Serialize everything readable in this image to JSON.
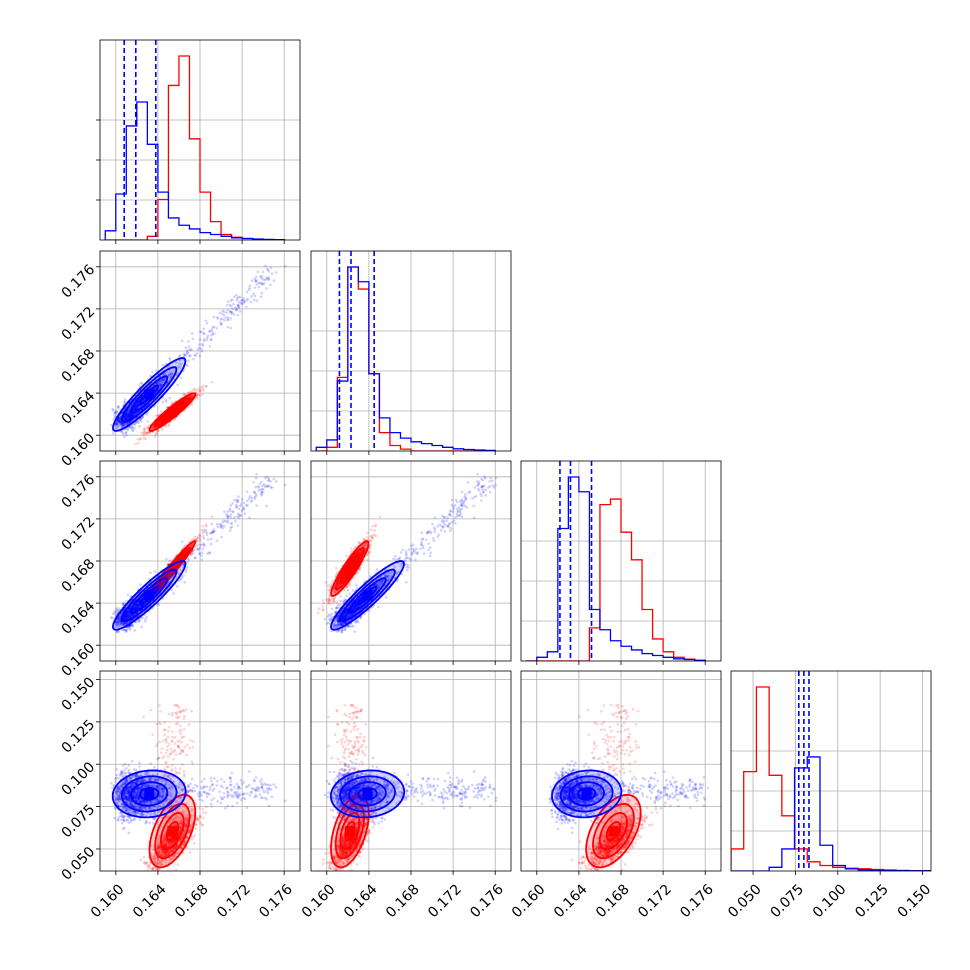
{
  "chart_data": {
    "type": "scatter",
    "title": "",
    "colors": {
      "series_a": "#0000ff",
      "series_b": "#ff0000"
    },
    "grid": true,
    "legend": "none",
    "axes": [
      {
        "range": [
          0.1585,
          0.1775
        ],
        "ticks": [
          "0.160",
          "0.164",
          "0.168",
          "0.172",
          "0.176"
        ],
        "tick_values": [
          0.16,
          0.164,
          0.168,
          0.172,
          0.176
        ]
      },
      {
        "range": [
          0.1585,
          0.1775
        ],
        "ticks": [
          "0.160",
          "0.164",
          "0.168",
          "0.172",
          "0.176"
        ],
        "tick_values": [
          0.16,
          0.164,
          0.168,
          0.172,
          0.176
        ]
      },
      {
        "range": [
          0.1585,
          0.1775
        ],
        "ticks": [
          "0.160",
          "0.164",
          "0.168",
          "0.172",
          "0.176"
        ],
        "tick_values": [
          0.16,
          0.164,
          0.168,
          0.172,
          0.176
        ]
      },
      {
        "range": [
          0.037,
          0.155
        ],
        "ticks": [
          "0.050",
          "0.075",
          "0.100",
          "0.125",
          "0.150"
        ],
        "tick_values": [
          0.05,
          0.075,
          0.1,
          0.125,
          0.15
        ]
      }
    ],
    "series": [
      {
        "key": "series_a",
        "means": [
          0.1615,
          0.1625,
          0.163,
          0.082
        ],
        "sds": [
          0.0012,
          0.0013,
          0.0012,
          0.008
        ],
        "quantiles": [
          [
            0.1608,
            0.1619,
            0.1638
          ],
          [
            0.1612,
            0.1623,
            0.1645
          ],
          [
            0.1622,
            0.1632,
            0.1652
          ],
          [
            0.077,
            0.08,
            0.083
          ]
        ]
      },
      {
        "key": "series_b",
        "means": [
          0.1654,
          0.1622,
          0.1673,
          0.054
        ],
        "sds": [
          0.0011,
          0.0008,
          0.0012,
          0.008
        ]
      }
    ],
    "histograms": [
      {
        "panel": 0,
        "bins": [
          0.159,
          0.16,
          0.161,
          0.162,
          0.163,
          0.164,
          0.165,
          0.166,
          0.167,
          0.168,
          0.169,
          0.17,
          0.171,
          0.172,
          0.173,
          0.174,
          0.175,
          0.176
        ],
        "series_a": [
          0.05,
          0.25,
          0.62,
          0.75,
          0.52,
          0.26,
          0.12,
          0.08,
          0.06,
          0.04,
          0.03,
          0.02,
          0.012,
          0.008,
          0.005,
          0.003,
          0.002
        ],
        "series_b": [
          0,
          0,
          0,
          0,
          0.02,
          0.22,
          0.84,
          1.0,
          0.55,
          0.26,
          0.1,
          0.03,
          0.015,
          0.008,
          0.004,
          0,
          0
        ]
      },
      {
        "panel": 1,
        "bins": [
          0.159,
          0.16,
          0.161,
          0.162,
          0.163,
          0.164,
          0.165,
          0.166,
          0.167,
          0.168,
          0.169,
          0.17,
          0.171,
          0.172,
          0.173,
          0.174,
          0.175,
          0.176
        ],
        "series_a": [
          0.02,
          0.06,
          0.38,
          1.0,
          0.92,
          0.42,
          0.18,
          0.1,
          0.07,
          0.05,
          0.04,
          0.03,
          0.02,
          0.012,
          0.008,
          0.005,
          0.003
        ],
        "series_b": [
          0,
          0.02,
          0.4,
          1.0,
          0.88,
          0.42,
          0.1,
          0.03,
          0.01,
          0,
          0,
          0,
          0,
          0,
          0,
          0,
          0
        ]
      },
      {
        "panel": 2,
        "bins": [
          0.159,
          0.16,
          0.161,
          0.162,
          0.163,
          0.164,
          0.165,
          0.166,
          0.167,
          0.168,
          0.169,
          0.17,
          0.171,
          0.172,
          0.173,
          0.174,
          0.175,
          0.176
        ],
        "series_a": [
          0,
          0.02,
          0.05,
          0.72,
          1.0,
          0.92,
          0.28,
          0.17,
          0.11,
          0.08,
          0.06,
          0.04,
          0.03,
          0.02,
          0.012,
          0.008,
          0.004
        ],
        "series_b": [
          0,
          0,
          0,
          0,
          0,
          0,
          0.18,
          0.85,
          0.88,
          0.7,
          0.55,
          0.28,
          0.12,
          0.05,
          0.02,
          0.01,
          0
        ]
      },
      {
        "panel": 3,
        "bins": [
          0.037,
          0.0445,
          0.052,
          0.0595,
          0.067,
          0.0745,
          0.082,
          0.0895,
          0.097,
          0.1045,
          0.112,
          0.1195,
          0.127,
          0.1345,
          0.142,
          0.1495,
          0.157
        ],
        "series_a": [
          0,
          0,
          0,
          0.02,
          0.12,
          0.56,
          0.62,
          0.14,
          0.03,
          0.012,
          0.006,
          0.004,
          0.003,
          0.002,
          0.001,
          0.001
        ],
        "series_b": [
          0.12,
          0.54,
          1.0,
          0.52,
          0.3,
          0.12,
          0.05,
          0.03,
          0.02,
          0.015,
          0.012,
          0.008,
          0.005,
          0.003,
          0.002,
          0.001
        ]
      }
    ]
  }
}
